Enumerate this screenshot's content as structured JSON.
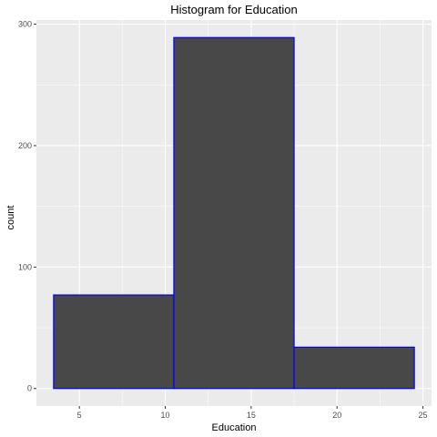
{
  "chart_data": {
    "type": "bar",
    "title": "Histogram for Education",
    "xlabel": "Education",
    "ylabel": "count",
    "bins": [
      {
        "x0": 3.5,
        "x1": 10.5,
        "count": 77
      },
      {
        "x0": 10.5,
        "x1": 17.5,
        "count": 289
      },
      {
        "x0": 17.5,
        "x1": 24.5,
        "count": 34
      }
    ],
    "xlim": [
      2.5,
      25.5
    ],
    "ylim": [
      -14.45,
      303.45
    ],
    "x_ticks": [
      5,
      10,
      15,
      20,
      25
    ],
    "y_ticks": [
      0,
      100,
      200,
      300
    ],
    "grid": true,
    "bar_fill": "#484848",
    "bar_outline": "#0000ff",
    "panel_background": "#ebebeb",
    "grid_color": "#ffffff"
  }
}
